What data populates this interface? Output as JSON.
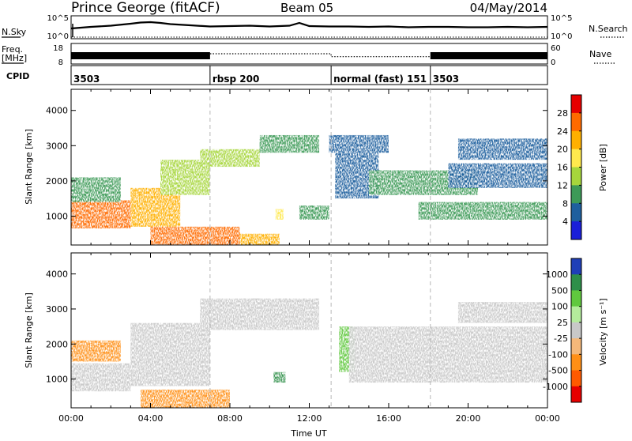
{
  "header": {
    "station": "Prince George (fitACF)",
    "beam": "Beam 05",
    "date": "04/May/2014"
  },
  "chart_data": [
    {
      "type": "line",
      "title": "",
      "left_label": "N.Sky",
      "left_ticks": [
        "10^5",
        "10^0"
      ],
      "right_label": "N.Search",
      "right_ticks": [
        "10^5",
        "10^0"
      ],
      "series": [
        {
          "name": "N.Sky",
          "style": "solid",
          "x": [
            0,
            1,
            2,
            3,
            3.5,
            4,
            4.5,
            5,
            6,
            7,
            8,
            9,
            10,
            11,
            11.5,
            12,
            13,
            14,
            15,
            16,
            17,
            18,
            19,
            20,
            21,
            22,
            23,
            24
          ],
          "y": [
            2.2,
            2.6,
            2.9,
            3.4,
            3.7,
            3.8,
            3.6,
            3.3,
            3.0,
            2.7,
            2.8,
            2.9,
            2.7,
            2.9,
            3.6,
            2.8,
            2.7,
            2.7,
            2.6,
            2.7,
            2.5,
            2.6,
            2.6,
            2.5,
            2.5,
            2.6,
            2.5,
            2.6
          ]
        },
        {
          "name": "N.Search",
          "style": "dotted",
          "x": [
            0,
            24
          ],
          "y": [
            0,
            0
          ]
        }
      ]
    },
    {
      "type": "line",
      "left_label": "Freq.\n[MHz]",
      "left_ticks": [
        "18",
        "8"
      ],
      "right_label": "Nave",
      "right_ticks": [
        "60",
        "0"
      ],
      "series": [
        {
          "name": "Freq.",
          "style": "solid-band",
          "segments": [
            {
              "x0": 0,
              "x1": 7
            },
            {
              "x0": 18.1,
              "x1": 24
            }
          ]
        },
        {
          "name": "Nave",
          "style": "dotted",
          "x": [
            7,
            13.1,
            13.1,
            18.1
          ],
          "y": [
            30,
            30,
            20,
            20
          ]
        }
      ]
    },
    {
      "type": "table",
      "label": "CPID",
      "segments": [
        {
          "start": 0,
          "text": "3503"
        },
        {
          "start": 7,
          "text": "rbsp 200"
        },
        {
          "start": 13.1,
          "text": "normal (fast) 151"
        },
        {
          "start": 18.1,
          "text": "3503"
        }
      ]
    },
    {
      "type": "heatmap",
      "ylabel": "Slant Range [km]",
      "yticks": [
        1000,
        2000,
        3000,
        4000
      ],
      "ylim": [
        180,
        4600
      ],
      "colorbar_label": "Power [dB]",
      "colorbar_ticks": [
        "28",
        "24",
        "20",
        "16",
        "12",
        "8",
        "4"
      ],
      "colorbar_colors": [
        "#e60000",
        "#ff6a00",
        "#ffb000",
        "#ffe94d",
        "#a6d63c",
        "#3d9a57",
        "#1e5f9e",
        "#1a1fd9"
      ],
      "regions": [
        {
          "x0": 0.0,
          "x1": 3.0,
          "r0": 650,
          "r1": 1450,
          "v": 24
        },
        {
          "x0": 0.0,
          "x1": 2.5,
          "r0": 1400,
          "r1": 2100,
          "v": 10
        },
        {
          "x0": 3.0,
          "x1": 5.5,
          "r0": 700,
          "r1": 1800,
          "v": 20
        },
        {
          "x0": 4.5,
          "x1": 7.0,
          "r0": 1600,
          "r1": 2600,
          "v": 14
        },
        {
          "x0": 6.5,
          "x1": 9.5,
          "r0": 2400,
          "r1": 2900,
          "v": 12
        },
        {
          "x0": 9.5,
          "x1": 12.5,
          "r0": 2800,
          "r1": 3300,
          "v": 10
        },
        {
          "x0": 4.0,
          "x1": 8.5,
          "r0": 180,
          "r1": 700,
          "v": 24
        },
        {
          "x0": 8.5,
          "x1": 10.5,
          "r0": 180,
          "r1": 500,
          "v": 22
        },
        {
          "x0": 10.3,
          "x1": 10.7,
          "r0": 900,
          "r1": 1200,
          "v": 18
        },
        {
          "x0": 11.5,
          "x1": 13.0,
          "r0": 900,
          "r1": 1300,
          "v": 10
        },
        {
          "x0": 13.3,
          "x1": 15.5,
          "r0": 1500,
          "r1": 2800,
          "v": 6
        },
        {
          "x0": 13.0,
          "x1": 16.0,
          "r0": 2800,
          "r1": 3300,
          "v": 4
        },
        {
          "x0": 15.0,
          "x1": 20.5,
          "r0": 1600,
          "r1": 2300,
          "v": 8
        },
        {
          "x0": 17.5,
          "x1": 24.0,
          "r0": 900,
          "r1": 1400,
          "v": 10
        },
        {
          "x0": 19.0,
          "x1": 24.0,
          "r0": 1800,
          "r1": 2500,
          "v": 6
        },
        {
          "x0": 19.5,
          "x1": 24.0,
          "r0": 2600,
          "r1": 3200,
          "v": 4
        }
      ]
    },
    {
      "type": "heatmap",
      "ylabel": "Slant Range [km]",
      "yticks": [
        1000,
        2000,
        3000,
        4000
      ],
      "ylim": [
        180,
        4600
      ],
      "xlabel": "Time UT",
      "xticks": [
        "00:00",
        "04:00",
        "08:00",
        "12:00",
        "16:00",
        "20:00",
        "00:00"
      ],
      "xlim": [
        0,
        24
      ],
      "colorbar_label": "Velocity [m s⁻¹]",
      "colorbar_ticks": [
        "1000",
        "500",
        "100",
        "25",
        "-25",
        "-100",
        "-500",
        "-1000"
      ],
      "colorbar_colors": [
        "#1f3fb8",
        "#2e8f49",
        "#60c83e",
        "#b4ec9c",
        "#c8c8c8",
        "#f4b87a",
        "#ff8f16",
        "#ff5a00",
        "#e60000"
      ],
      "regions": [
        {
          "x0": 0.0,
          "x1": 3.0,
          "r0": 650,
          "r1": 1450,
          "v": 0
        },
        {
          "x0": 0.0,
          "x1": 2.5,
          "r0": 1500,
          "r1": 2100,
          "v": -150
        },
        {
          "x0": 3.0,
          "x1": 7.0,
          "r0": 800,
          "r1": 2600,
          "v": 0
        },
        {
          "x0": 3.5,
          "x1": 8.0,
          "r0": 180,
          "r1": 700,
          "v": -300
        },
        {
          "x0": 6.5,
          "x1": 12.5,
          "r0": 2400,
          "r1": 3300,
          "v": 0
        },
        {
          "x0": 10.2,
          "x1": 10.8,
          "r0": 900,
          "r1": 1200,
          "v": 700
        },
        {
          "x0": 13.5,
          "x1": 14.3,
          "r0": 1200,
          "r1": 2500,
          "v": 300
        },
        {
          "x0": 14.0,
          "x1": 24.0,
          "r0": 900,
          "r1": 2500,
          "v": 0
        },
        {
          "x0": 19.5,
          "x1": 24.0,
          "r0": 2600,
          "r1": 3200,
          "v": 0
        }
      ]
    }
  ]
}
